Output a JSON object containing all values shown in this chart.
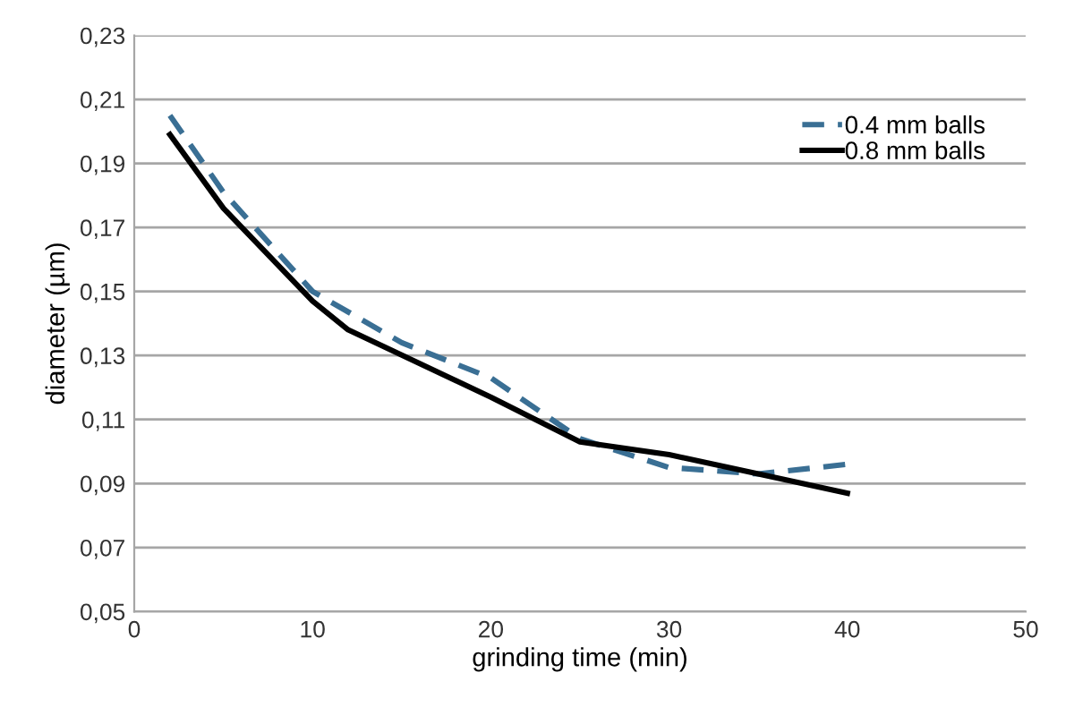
{
  "chart_data": {
    "type": "line",
    "xlabel": "grinding time (min)",
    "ylabel": "diameter (µm)",
    "xlim": [
      0,
      50
    ],
    "xticks": [
      0,
      10,
      20,
      30,
      40,
      50
    ],
    "ylim": [
      0.05,
      0.23
    ],
    "yticks": [
      {
        "value": 0.05,
        "label": "0,05"
      },
      {
        "value": 0.07,
        "label": "0,07"
      },
      {
        "value": 0.09,
        "label": "0,09"
      },
      {
        "value": 0.11,
        "label": "0,11"
      },
      {
        "value": 0.13,
        "label": "0,13"
      },
      {
        "value": 0.15,
        "label": "0,15"
      },
      {
        "value": 0.17,
        "label": "0,17"
      },
      {
        "value": 0.19,
        "label": "0,19"
      },
      {
        "value": 0.21,
        "label": "0,21"
      },
      {
        "value": 0.23,
        "label": "0,23"
      }
    ],
    "grid": "y",
    "legend": "top right",
    "marker": "none",
    "series": [
      {
        "name": "0.4 mm balls",
        "color": "#3a6f94",
        "line_style": "dashed",
        "x": [
          2,
          5,
          10,
          15,
          20,
          25,
          30,
          35,
          40
        ],
        "values": [
          0.205,
          0.181,
          0.15,
          0.134,
          0.123,
          0.104,
          0.095,
          0.093,
          0.096
        ]
      },
      {
        "name": "0.8 mm balls",
        "color": "#000000",
        "line_style": "solid",
        "x": [
          2,
          5,
          10,
          12,
          20,
          25,
          30,
          35,
          40
        ],
        "values": [
          0.199,
          0.176,
          0.147,
          0.138,
          0.117,
          0.103,
          0.099,
          0.093,
          0.087
        ]
      }
    ]
  }
}
